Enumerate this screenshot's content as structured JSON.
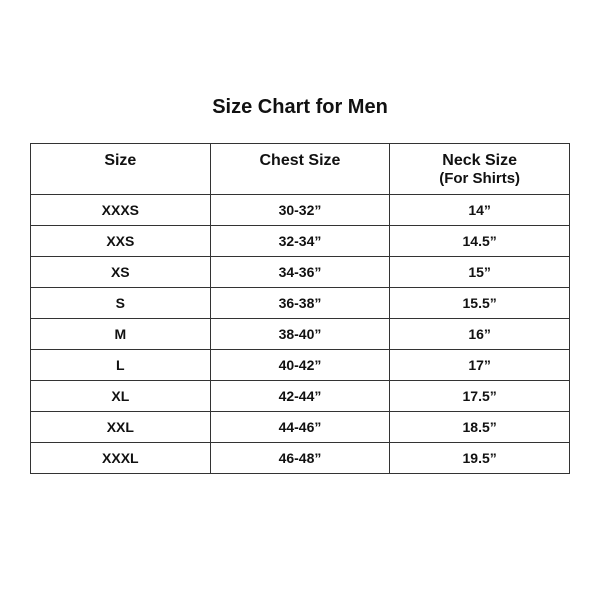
{
  "title": "Size Chart for Men",
  "headers": [
    {
      "label": "Size",
      "sub": ""
    },
    {
      "label": "Chest Size",
      "sub": ""
    },
    {
      "label": "Neck Size",
      "sub": "(For Shirts)"
    }
  ],
  "rows": [
    [
      "XXXS",
      "30-32”",
      "14”"
    ],
    [
      "XXS",
      "32-34”",
      "14.5”"
    ],
    [
      "XS",
      "34-36”",
      "15”"
    ],
    [
      "S",
      "36-38”",
      "15.5”"
    ],
    [
      "M",
      "38-40”",
      "16”"
    ],
    [
      "L",
      "40-42”",
      "17”"
    ],
    [
      "XL",
      "42-44”",
      "17.5”"
    ],
    [
      "XXL",
      "44-46”",
      "18.5”"
    ],
    [
      "XXXL",
      "46-48”",
      "19.5”"
    ]
  ]
}
